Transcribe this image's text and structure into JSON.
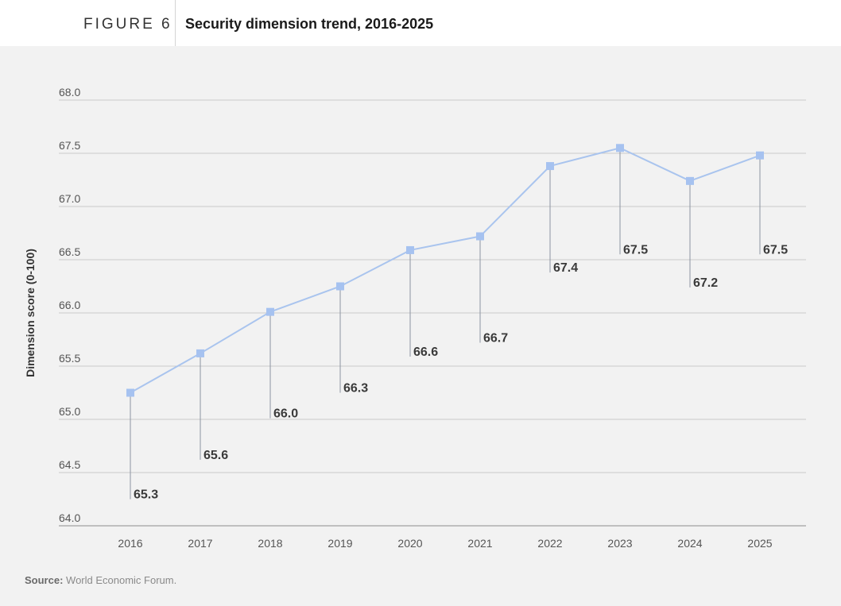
{
  "figure": {
    "label": "FIGURE 6",
    "title": "Security dimension trend, 2016-2025"
  },
  "source": {
    "prefix": "Source:",
    "text": "World Economic Forum."
  },
  "colors": {
    "line": "#a9c4ee",
    "marker": "#a6c2f0",
    "grid": "#c9c9c9",
    "axis": "#8c8c8c",
    "tick_text": "#555555",
    "label_text": "#3a3a3a",
    "leader": "#8c94a3"
  },
  "chart_data": {
    "type": "line",
    "title": "",
    "xlabel": "",
    "ylabel": "Dimension score (0-100)",
    "ylim": [
      64.0,
      68.0
    ],
    "yticks": [
      "64.0",
      "64.5",
      "65.0",
      "65.5",
      "66.0",
      "66.5",
      "67.0",
      "67.5",
      "68.0"
    ],
    "grid": true,
    "categories": [
      "2016",
      "2017",
      "2018",
      "2019",
      "2020",
      "2021",
      "2022",
      "2023",
      "2024",
      "2025"
    ],
    "values": [
      65.25,
      65.62,
      66.01,
      66.25,
      66.59,
      66.72,
      67.38,
      67.55,
      67.24,
      67.48
    ],
    "data_labels": [
      "65.3",
      "65.6",
      "66.0",
      "66.3",
      "66.6",
      "66.7",
      "67.4",
      "67.5",
      "67.2",
      "67.5"
    ],
    "label_values": [
      64.25,
      64.62,
      65.01,
      65.25,
      65.59,
      65.72,
      66.38,
      66.55,
      66.24,
      66.55
    ]
  }
}
